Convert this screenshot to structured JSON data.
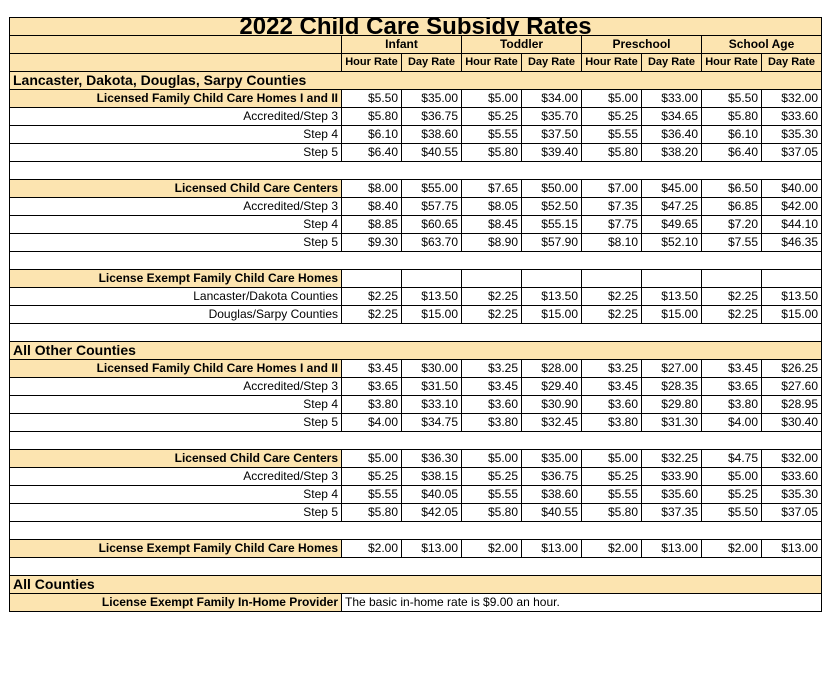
{
  "title": "2022 Child Care Subsidy Rates",
  "age_groups": [
    "Infant",
    "Toddler",
    "Preschool",
    "School Age"
  ],
  "rate_headers": [
    "Hour Rate",
    "Day Rate"
  ],
  "sections": [
    {
      "heading": "Lancaster, Dakota, Douglas, Sarpy Counties",
      "groups": [
        {
          "rows": [
            {
              "label": "Licensed Family Child Care Homes I and II",
              "bold": true,
              "values": [
                "$5.50",
                "$35.00",
                "$5.00",
                "$34.00",
                "$5.00",
                "$33.00",
                "$5.50",
                "$32.00"
              ]
            },
            {
              "label": "Accredited/Step 3",
              "bold": false,
              "values": [
                "$5.80",
                "$36.75",
                "$5.25",
                "$35.70",
                "$5.25",
                "$34.65",
                "$5.80",
                "$33.60"
              ]
            },
            {
              "label": "Step 4",
              "bold": false,
              "values": [
                "$6.10",
                "$38.60",
                "$5.55",
                "$37.50",
                "$5.55",
                "$36.40",
                "$6.10",
                "$35.30"
              ]
            },
            {
              "label": "Step 5",
              "bold": false,
              "values": [
                "$6.40",
                "$40.55",
                "$5.80",
                "$39.40",
                "$5.80",
                "$38.20",
                "$6.40",
                "$37.05"
              ]
            }
          ]
        },
        {
          "rows": [
            {
              "label": "Licensed Child Care Centers",
              "bold": true,
              "values": [
                "$8.00",
                "$55.00",
                "$7.65",
                "$50.00",
                "$7.00",
                "$45.00",
                "$6.50",
                "$40.00"
              ]
            },
            {
              "label": "Accredited/Step 3",
              "bold": false,
              "values": [
                "$8.40",
                "$57.75",
                "$8.05",
                "$52.50",
                "$7.35",
                "$47.25",
                "$6.85",
                "$42.00"
              ]
            },
            {
              "label": "Step 4",
              "bold": false,
              "values": [
                "$8.85",
                "$60.65",
                "$8.45",
                "$55.15",
                "$7.75",
                "$49.65",
                "$7.20",
                "$44.10"
              ]
            },
            {
              "label": "Step 5",
              "bold": false,
              "values": [
                "$9.30",
                "$63.70",
                "$8.90",
                "$57.90",
                "$8.10",
                "$52.10",
                "$7.55",
                "$46.35"
              ]
            }
          ]
        },
        {
          "rows": [
            {
              "label": "License Exempt Family Child Care Homes",
              "bold": true,
              "values": [
                "",
                "",
                "",
                "",
                "",
                "",
                "",
                ""
              ]
            },
            {
              "label": "Lancaster/Dakota Counties",
              "bold": false,
              "values": [
                "$2.25",
                "$13.50",
                "$2.25",
                "$13.50",
                "$2.25",
                "$13.50",
                "$2.25",
                "$13.50"
              ]
            },
            {
              "label": "Douglas/Sarpy Counties",
              "bold": false,
              "values": [
                "$2.25",
                "$15.00",
                "$2.25",
                "$15.00",
                "$2.25",
                "$15.00",
                "$2.25",
                "$15.00"
              ]
            }
          ]
        }
      ]
    },
    {
      "heading": "All Other Counties",
      "groups": [
        {
          "rows": [
            {
              "label": "Licensed Family Child Care Homes I and II",
              "bold": true,
              "values": [
                "$3.45",
                "$30.00",
                "$3.25",
                "$28.00",
                "$3.25",
                "$27.00",
                "$3.45",
                "$26.25"
              ]
            },
            {
              "label": "Accredited/Step 3",
              "bold": false,
              "values": [
                "$3.65",
                "$31.50",
                "$3.45",
                "$29.40",
                "$3.45",
                "$28.35",
                "$3.65",
                "$27.60"
              ]
            },
            {
              "label": "Step 4",
              "bold": false,
              "values": [
                "$3.80",
                "$33.10",
                "$3.60",
                "$30.90",
                "$3.60",
                "$29.80",
                "$3.80",
                "$28.95"
              ]
            },
            {
              "label": "Step 5",
              "bold": false,
              "values": [
                "$4.00",
                "$34.75",
                "$3.80",
                "$32.45",
                "$3.80",
                "$31.30",
                "$4.00",
                "$30.40"
              ]
            }
          ]
        },
        {
          "rows": [
            {
              "label": "Licensed Child Care Centers",
              "bold": true,
              "values": [
                "$5.00",
                "$36.30",
                "$5.00",
                "$35.00",
                "$5.00",
                "$32.25",
                "$4.75",
                "$32.00"
              ]
            },
            {
              "label": "Accredited/Step 3",
              "bold": false,
              "values": [
                "$5.25",
                "$38.15",
                "$5.25",
                "$36.75",
                "$5.25",
                "$33.90",
                "$5.00",
                "$33.60"
              ]
            },
            {
              "label": "Step 4",
              "bold": false,
              "values": [
                "$5.55",
                "$40.05",
                "$5.55",
                "$38.60",
                "$5.55",
                "$35.60",
                "$5.25",
                "$35.30"
              ]
            },
            {
              "label": "Step 5",
              "bold": false,
              "values": [
                "$5.80",
                "$42.05",
                "$5.80",
                "$40.55",
                "$5.80",
                "$37.35",
                "$5.50",
                "$37.05"
              ]
            }
          ]
        },
        {
          "rows": [
            {
              "label": "License Exempt Family Child Care Homes",
              "bold": true,
              "values": [
                "$2.00",
                "$13.00",
                "$2.00",
                "$13.00",
                "$2.00",
                "$13.00",
                "$2.00",
                "$13.00"
              ]
            }
          ]
        }
      ]
    },
    {
      "heading": "All Counties",
      "groups": [
        {
          "rows": [
            {
              "label": "License Exempt Family In-Home Provider",
              "bold": true,
              "note": "The basic in-home rate is $9.00 an hour."
            }
          ]
        }
      ]
    }
  ],
  "colors": {
    "header_fill": "#fce4b0",
    "border": "#000000"
  }
}
